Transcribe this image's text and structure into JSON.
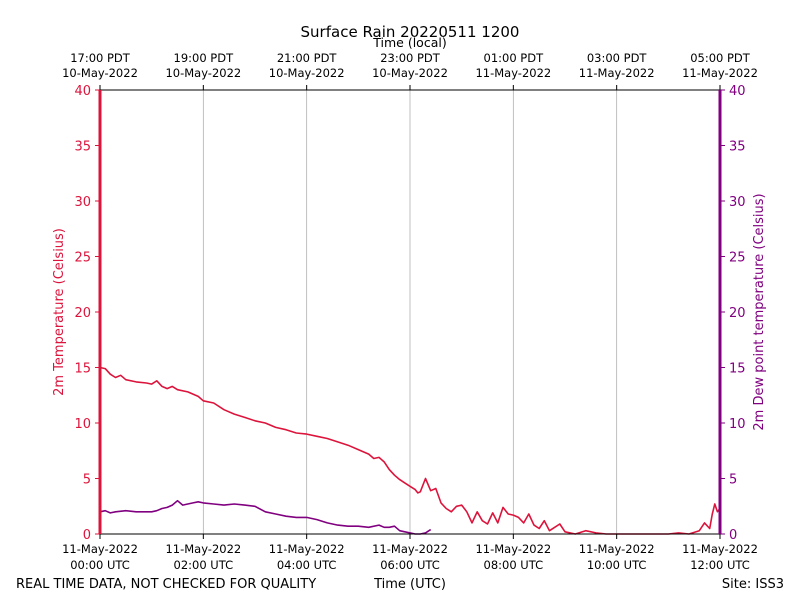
{
  "chart_data": {
    "type": "line",
    "title": "Surface Rain 20220511 1200",
    "top_axis_label": "Time (local)",
    "xlabel": "Time (UTC)",
    "ylabel_left": "2m Temperature (Celsius)",
    "ylabel_right": "2m Dew point temperature (Celsius)",
    "footer_left": "REAL TIME DATA, NOT CHECKED FOR QUALITY",
    "footer_right": "Site: ISS3",
    "xlim_hours": [
      0,
      12
    ],
    "ylim": [
      0,
      40
    ],
    "y_ticks": [
      "0",
      "5",
      "10",
      "15",
      "20",
      "25",
      "30",
      "35",
      "40"
    ],
    "grid": "vertical",
    "x_ticks_bottom": [
      {
        "hour": 0,
        "line1": "11-May-2022",
        "line2": "00:00 UTC"
      },
      {
        "hour": 2,
        "line1": "11-May-2022",
        "line2": "02:00 UTC"
      },
      {
        "hour": 4,
        "line1": "11-May-2022",
        "line2": "04:00 UTC"
      },
      {
        "hour": 6,
        "line1": "11-May-2022",
        "line2": "06:00 UTC"
      },
      {
        "hour": 8,
        "line1": "11-May-2022",
        "line2": "08:00 UTC"
      },
      {
        "hour": 10,
        "line1": "11-May-2022",
        "line2": "10:00 UTC"
      },
      {
        "hour": 12,
        "line1": "11-May-2022",
        "line2": "12:00 UTC"
      }
    ],
    "x_ticks_top": [
      {
        "hour": 0,
        "line1": "17:00 PDT",
        "line2": "10-May-2022"
      },
      {
        "hour": 2,
        "line1": "19:00 PDT",
        "line2": "10-May-2022"
      },
      {
        "hour": 4,
        "line1": "21:00 PDT",
        "line2": "10-May-2022"
      },
      {
        "hour": 6,
        "line1": "23:00 PDT",
        "line2": "10-May-2022"
      },
      {
        "hour": 8,
        "line1": "01:00 PDT",
        "line2": "11-May-2022"
      },
      {
        "hour": 10,
        "line1": "03:00 PDT",
        "line2": "11-May-2022"
      },
      {
        "hour": 12,
        "line1": "05:00 PDT",
        "line2": "11-May-2022"
      }
    ],
    "series": [
      {
        "name": "2m Temperature",
        "color": "#dc143c",
        "axis": "left",
        "x": [
          0,
          0.1,
          0.2,
          0.3,
          0.4,
          0.5,
          0.7,
          0.9,
          1.0,
          1.1,
          1.2,
          1.3,
          1.4,
          1.5,
          1.7,
          1.9,
          2.0,
          2.2,
          2.4,
          2.6,
          2.8,
          3.0,
          3.2,
          3.4,
          3.6,
          3.8,
          4.0,
          4.2,
          4.4,
          4.6,
          4.8,
          5.0,
          5.2,
          5.3,
          5.4,
          5.5,
          5.6,
          5.7,
          5.8,
          5.9,
          6.0,
          6.1,
          6.15,
          6.2,
          6.3,
          6.4,
          6.5,
          6.6,
          6.7,
          6.8,
          6.9,
          7.0,
          7.1,
          7.2,
          7.3,
          7.4,
          7.5,
          7.6,
          7.7,
          7.8,
          7.9,
          8.0,
          8.1,
          8.2,
          8.3,
          8.4,
          8.5,
          8.6,
          8.7,
          8.8,
          8.9,
          9.0,
          9.2,
          9.4,
          9.6,
          9.8,
          10.0,
          10.2,
          10.4,
          10.6,
          10.8,
          11.0,
          11.2,
          11.4,
          11.6,
          11.7,
          11.8,
          11.85,
          11.9,
          11.95,
          12.0
        ],
        "values": [
          15.0,
          14.9,
          14.4,
          14.1,
          14.3,
          13.9,
          13.7,
          13.6,
          13.5,
          13.8,
          13.3,
          13.1,
          13.3,
          13.0,
          12.8,
          12.4,
          12.0,
          11.8,
          11.2,
          10.8,
          10.5,
          10.2,
          10.0,
          9.6,
          9.4,
          9.1,
          9.0,
          8.8,
          8.6,
          8.3,
          8.0,
          7.6,
          7.2,
          6.8,
          6.9,
          6.5,
          5.8,
          5.3,
          4.9,
          4.6,
          4.3,
          4.0,
          3.7,
          3.8,
          5.0,
          3.9,
          4.1,
          2.8,
          2.3,
          2.0,
          2.5,
          2.6,
          2.0,
          1.0,
          2.0,
          1.2,
          0.9,
          1.9,
          1.0,
          2.4,
          1.8,
          1.7,
          1.5,
          1.0,
          1.8,
          0.8,
          0.5,
          1.2,
          0.3,
          0.6,
          0.9,
          0.2,
          0.0,
          0.3,
          0.1,
          0.0,
          0.0,
          0.0,
          0.0,
          0.0,
          0.0,
          0.0,
          0.1,
          0.0,
          0.3,
          1.0,
          0.5,
          1.8,
          2.7,
          2.0,
          2.3
        ]
      },
      {
        "name": "2m Dew point temperature",
        "color": "#800080",
        "axis": "right",
        "x": [
          0,
          0.1,
          0.2,
          0.3,
          0.5,
          0.7,
          0.9,
          1.0,
          1.1,
          1.2,
          1.3,
          1.4,
          1.5,
          1.6,
          1.7,
          1.8,
          1.9,
          2.0,
          2.2,
          2.4,
          2.6,
          2.8,
          3.0,
          3.2,
          3.4,
          3.6,
          3.8,
          4.0,
          4.2,
          4.4,
          4.6,
          4.8,
          5.0,
          5.2,
          5.4,
          5.5,
          5.6,
          5.7,
          5.8,
          5.9,
          6.0,
          6.1,
          6.2,
          6.3,
          6.4
        ],
        "values": [
          2.0,
          2.1,
          1.9,
          2.0,
          2.1,
          2.0,
          2.0,
          2.0,
          2.1,
          2.3,
          2.4,
          2.6,
          3.0,
          2.6,
          2.7,
          2.8,
          2.9,
          2.8,
          2.7,
          2.6,
          2.7,
          2.6,
          2.5,
          2.0,
          1.8,
          1.6,
          1.5,
          1.5,
          1.3,
          1.0,
          0.8,
          0.7,
          0.7,
          0.6,
          0.8,
          0.6,
          0.6,
          0.7,
          0.3,
          0.2,
          0.1,
          0.0,
          0.0,
          0.1,
          0.4
        ]
      }
    ]
  }
}
